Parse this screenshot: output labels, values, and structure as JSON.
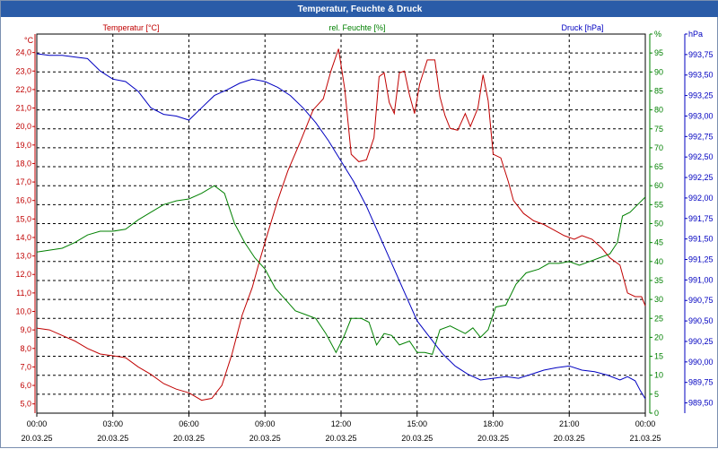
{
  "window": {
    "title": "Temperatur, Feuchte & Druck"
  },
  "colors": {
    "temperature": "#c00000",
    "humidity": "#008000",
    "pressure": "#0000c0",
    "titlebar": "#2a5ca8",
    "grid": "#000000"
  },
  "chart_data": {
    "type": "line",
    "title": "Temperatur, Feuchte & Druck",
    "grid": true,
    "x_axis": {
      "range_hours": [
        0,
        24
      ],
      "ticks": [
        {
          "h": 0,
          "time": "00:00",
          "date": "20.03.25"
        },
        {
          "h": 3,
          "time": "03:00",
          "date": "20.03.25"
        },
        {
          "h": 6,
          "time": "06:00",
          "date": "20.03.25"
        },
        {
          "h": 9,
          "time": "09:00",
          "date": "20.03.25"
        },
        {
          "h": 12,
          "time": "12:00",
          "date": "20.03.25"
        },
        {
          "h": 15,
          "time": "15:00",
          "date": "20.03.25"
        },
        {
          "h": 18,
          "time": "18:00",
          "date": "20.03.25"
        },
        {
          "h": 21,
          "time": "21:00",
          "date": "20.03.25"
        },
        {
          "h": 24,
          "time": "00:00",
          "date": "21.03.25"
        }
      ]
    },
    "axes": {
      "temperature": {
        "header": "Temperatur [°C]",
        "unit": "°C",
        "min": 4.5,
        "max": 25.0,
        "ticks": [
          "5,0",
          "6,0",
          "7,0",
          "8,0",
          "9,0",
          "10,0",
          "11,0",
          "12,0",
          "13,0",
          "14,0",
          "15,0",
          "16,0",
          "17,0",
          "18,0",
          "19,0",
          "20,0",
          "21,0",
          "22,0",
          "23,0",
          "24,0"
        ],
        "tick_values": [
          5,
          6,
          7,
          8,
          9,
          10,
          11,
          12,
          13,
          14,
          15,
          16,
          17,
          18,
          19,
          20,
          21,
          22,
          23,
          24
        ]
      },
      "humidity": {
        "header": "rel. Feuchte [%]",
        "unit": "%",
        "min": 0,
        "max": 100,
        "ticks": [
          "0",
          "5",
          "10",
          "15",
          "20",
          "25",
          "30",
          "35",
          "40",
          "45",
          "50",
          "55",
          "60",
          "65",
          "70",
          "75",
          "80",
          "85",
          "90",
          "95",
          "%"
        ],
        "tick_values": [
          0,
          5,
          10,
          15,
          20,
          25,
          30,
          35,
          40,
          45,
          50,
          55,
          60,
          65,
          70,
          75,
          80,
          85,
          90,
          95,
          100
        ]
      },
      "pressure": {
        "header": "Druck [hPa]",
        "unit": "hPa",
        "min": 989.375,
        "max": 994.0,
        "ticks": [
          "989,50",
          "989,75",
          "990,00",
          "990,25",
          "990,50",
          "990,75",
          "991,00",
          "991,25",
          "991,50",
          "991,75",
          "992,00",
          "992,25",
          "992,50",
          "992,75",
          "993,00",
          "993,25",
          "993,50",
          "993,75",
          "hPa"
        ],
        "tick_values": [
          989.5,
          989.75,
          990.0,
          990.25,
          990.5,
          990.75,
          991.0,
          991.25,
          991.5,
          991.75,
          992.0,
          992.25,
          992.5,
          992.75,
          993.0,
          993.25,
          993.5,
          993.75,
          994.0
        ]
      }
    },
    "series": [
      {
        "name": "Temperatur [°C]",
        "axis": "temperature",
        "points": [
          [
            0,
            9.1
          ],
          [
            0.5,
            9.0
          ],
          [
            1,
            8.7
          ],
          [
            1.5,
            8.4
          ],
          [
            2,
            8.0
          ],
          [
            2.5,
            7.7
          ],
          [
            3,
            7.6
          ],
          [
            3.5,
            7.5
          ],
          [
            4,
            7.0
          ],
          [
            4.5,
            6.6
          ],
          [
            5,
            6.1
          ],
          [
            5.5,
            5.8
          ],
          [
            6,
            5.6
          ],
          [
            6.5,
            5.2
          ],
          [
            6.9,
            5.3
          ],
          [
            7.3,
            6.0
          ],
          [
            7.7,
            7.7
          ],
          [
            8.1,
            9.8
          ],
          [
            8.5,
            11.3
          ],
          [
            8.8,
            12.8
          ],
          [
            9.1,
            14.2
          ],
          [
            9.5,
            16.0
          ],
          [
            9.9,
            17.6
          ],
          [
            10.4,
            19.2
          ],
          [
            10.9,
            20.9
          ],
          [
            11.3,
            21.5
          ],
          [
            11.6,
            23.0
          ],
          [
            11.9,
            24.2
          ],
          [
            12.15,
            22.0
          ],
          [
            12.4,
            18.5
          ],
          [
            12.7,
            18.1
          ],
          [
            13.0,
            18.2
          ],
          [
            13.3,
            19.4
          ],
          [
            13.5,
            22.7
          ],
          [
            13.7,
            22.9
          ],
          [
            13.9,
            21.3
          ],
          [
            14.1,
            20.7
          ],
          [
            14.3,
            22.9
          ],
          [
            14.5,
            23.0
          ],
          [
            14.7,
            21.7
          ],
          [
            14.9,
            20.7
          ],
          [
            15.1,
            22.3
          ],
          [
            15.4,
            23.6
          ],
          [
            15.7,
            23.6
          ],
          [
            15.9,
            21.6
          ],
          [
            16.1,
            20.6
          ],
          [
            16.3,
            19.9
          ],
          [
            16.6,
            19.8
          ],
          [
            16.9,
            20.7
          ],
          [
            17.1,
            20.0
          ],
          [
            17.4,
            21.0
          ],
          [
            17.6,
            22.8
          ],
          [
            17.8,
            21.4
          ],
          [
            18.0,
            18.5
          ],
          [
            18.3,
            18.3
          ],
          [
            18.6,
            17.0
          ],
          [
            18.8,
            16.0
          ],
          [
            19.2,
            15.3
          ],
          [
            19.6,
            14.9
          ],
          [
            20.0,
            14.7
          ],
          [
            20.4,
            14.4
          ],
          [
            20.8,
            14.1
          ],
          [
            21.2,
            13.9
          ],
          [
            21.5,
            14.1
          ],
          [
            21.9,
            13.9
          ],
          [
            22.3,
            13.4
          ],
          [
            22.6,
            12.9
          ],
          [
            23.0,
            12.5
          ],
          [
            23.3,
            11.0
          ],
          [
            23.6,
            10.8
          ],
          [
            23.85,
            10.8
          ],
          [
            24.0,
            10.3
          ]
        ]
      },
      {
        "name": "rel. Feuchte [%]",
        "axis": "humidity",
        "points": [
          [
            0,
            42.5
          ],
          [
            0.5,
            43
          ],
          [
            1,
            43.5
          ],
          [
            1.5,
            45
          ],
          [
            2,
            47
          ],
          [
            2.5,
            48
          ],
          [
            3,
            48
          ],
          [
            3.5,
            48.5
          ],
          [
            4,
            51
          ],
          [
            4.5,
            53
          ],
          [
            5,
            55
          ],
          [
            5.5,
            56
          ],
          [
            6,
            56.5
          ],
          [
            6.5,
            58
          ],
          [
            7.0,
            60
          ],
          [
            7.4,
            58
          ],
          [
            7.8,
            50
          ],
          [
            8.2,
            45
          ],
          [
            8.6,
            41
          ],
          [
            9.0,
            38
          ],
          [
            9.4,
            33
          ],
          [
            9.8,
            30
          ],
          [
            10.2,
            27
          ],
          [
            10.6,
            26
          ],
          [
            11.0,
            25
          ],
          [
            11.4,
            21
          ],
          [
            11.8,
            16
          ],
          [
            12.1,
            20
          ],
          [
            12.4,
            25
          ],
          [
            12.8,
            25
          ],
          [
            13.1,
            24
          ],
          [
            13.4,
            18
          ],
          [
            13.7,
            21
          ],
          [
            14.0,
            20.5
          ],
          [
            14.3,
            18
          ],
          [
            14.7,
            19
          ],
          [
            15.0,
            16
          ],
          [
            15.3,
            16
          ],
          [
            15.6,
            15.5
          ],
          [
            15.9,
            22
          ],
          [
            16.3,
            23
          ],
          [
            16.6,
            22
          ],
          [
            16.9,
            21
          ],
          [
            17.2,
            22.5
          ],
          [
            17.5,
            20
          ],
          [
            17.8,
            22
          ],
          [
            18.1,
            28
          ],
          [
            18.5,
            28.5
          ],
          [
            18.9,
            34
          ],
          [
            19.3,
            37
          ],
          [
            19.8,
            38
          ],
          [
            20.2,
            39.5
          ],
          [
            20.6,
            39.5
          ],
          [
            21.0,
            40
          ],
          [
            21.4,
            39
          ],
          [
            21.8,
            40
          ],
          [
            22.2,
            41
          ],
          [
            22.6,
            42
          ],
          [
            22.9,
            45
          ],
          [
            23.1,
            52
          ],
          [
            23.4,
            53
          ],
          [
            23.7,
            55
          ],
          [
            24.0,
            57
          ]
        ]
      },
      {
        "name": "Druck [hPa]",
        "axis": "pressure",
        "points": [
          [
            0,
            993.76
          ],
          [
            0.5,
            993.74
          ],
          [
            1,
            993.74
          ],
          [
            1.5,
            993.72
          ],
          [
            2,
            993.7
          ],
          [
            2.5,
            993.55
          ],
          [
            3,
            993.45
          ],
          [
            3.5,
            993.42
          ],
          [
            4,
            993.3
          ],
          [
            4.5,
            993.1
          ],
          [
            5,
            993.02
          ],
          [
            5.5,
            993.0
          ],
          [
            6,
            992.95
          ],
          [
            6.5,
            993.1
          ],
          [
            7,
            993.25
          ],
          [
            7.5,
            993.32
          ],
          [
            8,
            993.4
          ],
          [
            8.5,
            993.45
          ],
          [
            9,
            993.42
          ],
          [
            9.5,
            993.35
          ],
          [
            10,
            993.25
          ],
          [
            10.5,
            993.1
          ],
          [
            11,
            992.92
          ],
          [
            11.5,
            992.7
          ],
          [
            12,
            992.45
          ],
          [
            12.5,
            992.2
          ],
          [
            13,
            991.9
          ],
          [
            13.5,
            991.55
          ],
          [
            14,
            991.2
          ],
          [
            14.5,
            990.85
          ],
          [
            15,
            990.5
          ],
          [
            15.5,
            990.3
          ],
          [
            16,
            990.1
          ],
          [
            16.5,
            989.95
          ],
          [
            17,
            989.85
          ],
          [
            17.5,
            989.78
          ],
          [
            18,
            989.8
          ],
          [
            18.5,
            989.82
          ],
          [
            19,
            989.8
          ],
          [
            19.5,
            989.85
          ],
          [
            20,
            989.9
          ],
          [
            20.5,
            989.93
          ],
          [
            21,
            989.95
          ],
          [
            21.5,
            989.9
          ],
          [
            22,
            989.88
          ],
          [
            22.5,
            989.84
          ],
          [
            23,
            989.78
          ],
          [
            23.3,
            989.82
          ],
          [
            23.6,
            989.77
          ],
          [
            23.8,
            989.65
          ],
          [
            24,
            989.55
          ]
        ]
      }
    ]
  }
}
